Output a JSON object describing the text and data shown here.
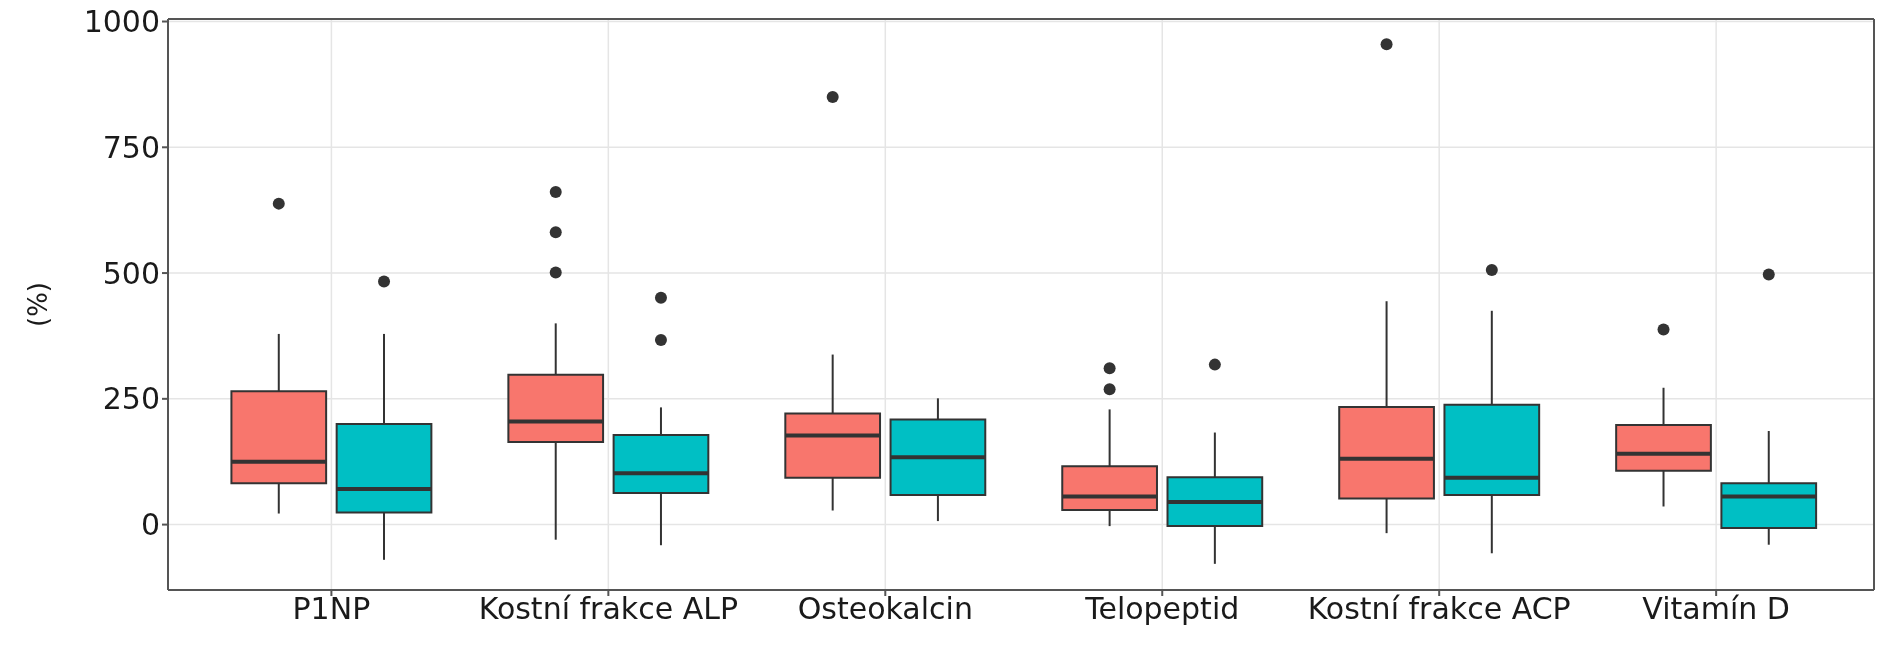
{
  "chart_data": {
    "type": "box",
    "ylabel": "(%)",
    "categories": [
      "P1NP",
      "Kostní frakce ALP",
      "Osteokalcin",
      "Telopeptid",
      "Kostní frakce ACP",
      "Vitamín D"
    ],
    "ylim": [
      -130,
      1005
    ],
    "yticks": [
      0,
      250,
      500,
      750,
      1000
    ],
    "grid": true,
    "series": [
      {
        "color": "#f8766d",
        "boxes": [
          {
            "low": 22,
            "q1": 82,
            "median": 125,
            "q3": 265,
            "high": 379,
            "outliers": [
              638
            ]
          },
          {
            "low": -30,
            "q1": 164,
            "median": 205,
            "q3": 298,
            "high": 400,
            "outliers": [
              661,
              581,
              501
            ]
          },
          {
            "low": 28,
            "q1": 93,
            "median": 177,
            "q3": 221,
            "high": 338,
            "outliers": [
              850
            ]
          },
          {
            "low": -3,
            "q1": 29,
            "median": 56,
            "q3": 116,
            "high": 229,
            "outliers": [
              311,
              269
            ]
          },
          {
            "low": -17,
            "q1": 52,
            "median": 131,
            "q3": 234,
            "high": 444,
            "outliers": [
              955
            ]
          },
          {
            "low": 36,
            "q1": 107,
            "median": 141,
            "q3": 198,
            "high": 272,
            "outliers": [
              388
            ]
          }
        ]
      },
      {
        "color": "#00bfc4",
        "boxes": [
          {
            "low": -70,
            "q1": 24,
            "median": 71,
            "q3": 200,
            "high": 379,
            "outliers": [
              483
            ]
          },
          {
            "low": -41,
            "q1": 63,
            "median": 102,
            "q3": 178,
            "high": 233,
            "outliers": [
              451,
              367
            ]
          },
          {
            "low": 7,
            "q1": 59,
            "median": 134,
            "q3": 209,
            "high": 251
          },
          {
            "low": -78,
            "q1": -3,
            "median": 45,
            "q3": 94,
            "high": 183,
            "outliers": [
              318
            ]
          },
          {
            "low": -57,
            "q1": 59,
            "median": 93,
            "q3": 238,
            "high": 425,
            "outliers": [
              506
            ]
          },
          {
            "low": -40,
            "q1": -7,
            "median": 56,
            "q3": 82,
            "high": 186,
            "outliers": [
              497
            ]
          }
        ]
      }
    ]
  }
}
